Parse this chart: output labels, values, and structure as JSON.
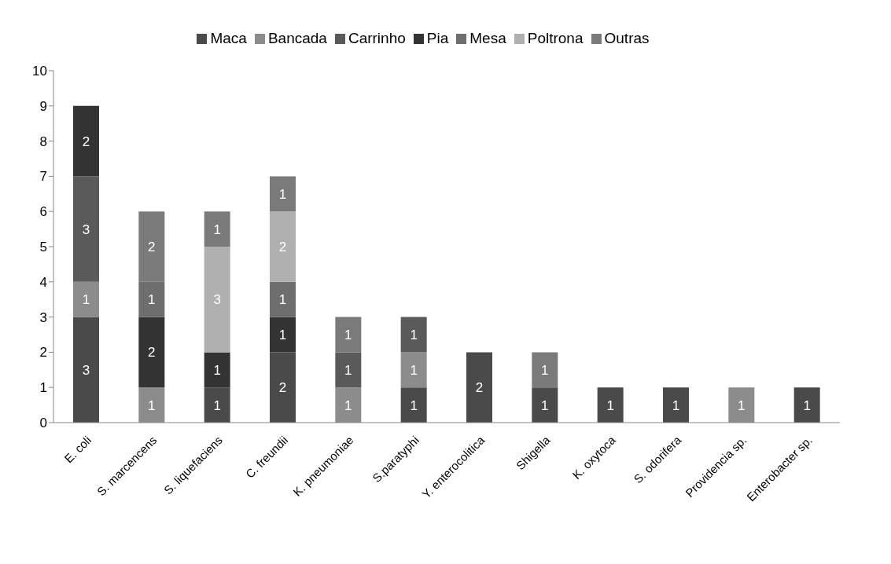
{
  "chart_data": {
    "type": "bar",
    "stacked": true,
    "data_labels": true,
    "legend": "top",
    "grid": false,
    "categories": [
      "E. coli",
      "S. marcencens",
      "S. liquefaciens",
      "C. freundii",
      "K. pneumoniae",
      "S.paratyphi",
      "Y. enterocolitica",
      "Shigella",
      "K. oxytoca",
      "S. odorifera",
      "Providencia sp.",
      "Enterobacter sp."
    ],
    "ylim": [
      0,
      10
    ],
    "yticks": [
      0,
      1,
      2,
      3,
      4,
      5,
      6,
      7,
      8,
      9,
      10
    ],
    "series": [
      {
        "name": "Maca",
        "color": "#4a4a4a",
        "values": [
          3,
          null,
          1,
          2,
          null,
          1,
          2,
          1,
          1,
          1,
          null,
          1
        ]
      },
      {
        "name": "Bancada",
        "color": "#8c8c8c",
        "values": [
          1,
          1,
          null,
          null,
          1,
          1,
          null,
          null,
          null,
          null,
          1,
          null
        ]
      },
      {
        "name": "Carrinho",
        "color": "#5a5a5a",
        "values": [
          3,
          null,
          null,
          null,
          1,
          1,
          null,
          null,
          null,
          null,
          null,
          null
        ]
      },
      {
        "name": "Pia",
        "color": "#333333",
        "values": [
          2,
          2,
          1,
          1,
          null,
          null,
          null,
          null,
          null,
          null,
          null,
          null
        ]
      },
      {
        "name": "Mesa",
        "color": "#6e6e6e",
        "values": [
          null,
          1,
          null,
          1,
          null,
          null,
          null,
          null,
          null,
          null,
          null,
          null
        ]
      },
      {
        "name": "Poltrona",
        "color": "#b0b0b0",
        "values": [
          null,
          null,
          3,
          2,
          null,
          null,
          null,
          null,
          null,
          null,
          null,
          null
        ]
      },
      {
        "name": "Outras",
        "color": "#7a7a7a",
        "values": [
          null,
          2,
          1,
          1,
          1,
          null,
          null,
          1,
          null,
          null,
          null,
          null
        ]
      }
    ]
  }
}
